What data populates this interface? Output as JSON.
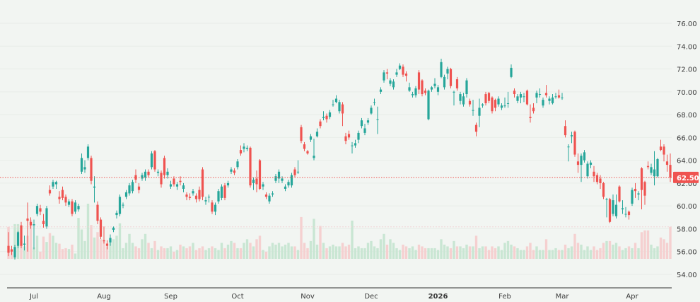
{
  "chart_data": {
    "type": "candlestick",
    "title": "",
    "colors": {
      "up": "#26a69a",
      "down": "#ef5350",
      "volume_up": "#c9e6d3",
      "volume_down": "#f5d0d0",
      "background": "#f2f5f2",
      "grid": "#e8ece8"
    },
    "ylim": [
      54,
      76
    ],
    "y_ticks": [
      "54.00",
      "56.00",
      "58.00",
      "60.00",
      "62.00",
      "64.00",
      "66.00",
      "68.00",
      "70.00",
      "72.00",
      "74.00",
      "76.00"
    ],
    "grid": true,
    "current_price": {
      "value": 62.5,
      "label": "62.50"
    },
    "x_labels": [
      {
        "label": "Jul",
        "index": 8
      },
      {
        "label": "Aug",
        "index": 30
      },
      {
        "label": "Sep",
        "index": 51
      },
      {
        "label": "Oct",
        "index": 72
      },
      {
        "label": "Nov",
        "index": 94
      },
      {
        "label": "Dec",
        "index": 114
      },
      {
        "label": "2026",
        "index": 135,
        "bold": true
      },
      {
        "label": "Feb",
        "index": 156
      },
      {
        "label": "Mar",
        "index": 174
      },
      {
        "label": "Apr",
        "index": 196
      }
    ],
    "candle_fields": [
      "open",
      "high",
      "low",
      "close",
      "volume"
    ],
    "candles": [
      [
        56.5,
        57.7,
        55.6,
        55.9,
        36
      ],
      [
        56.2,
        56.5,
        55.7,
        56.0,
        10
      ],
      [
        55.5,
        56.6,
        55.3,
        56.4,
        39
      ],
      [
        56.5,
        57.8,
        56.3,
        57.7,
        39
      ],
      [
        58.3,
        58.6,
        56.3,
        56.5,
        20
      ],
      [
        56.6,
        57.4,
        56.1,
        56.7,
        14
      ],
      [
        58.9,
        60.3,
        56.0,
        58.7,
        26
      ],
      [
        58.6,
        59.0,
        58.0,
        58.3,
        44
      ],
      [
        58.3,
        58.8,
        56.2,
        58.4,
        13
      ],
      [
        59.3,
        60.2,
        59.1,
        60.0,
        26
      ],
      [
        59.8,
        60.1,
        59.2,
        59.5,
        8
      ],
      [
        58.7,
        59.3,
        58.1,
        58.4,
        25
      ],
      [
        58.2,
        60.0,
        58.0,
        59.8,
        19
      ],
      [
        61.4,
        61.8,
        60.9,
        61.1,
        29
      ],
      [
        61.7,
        62.3,
        61.5,
        62.1,
        26
      ],
      [
        61.9,
        62.2,
        61.5,
        62.1,
        18
      ],
      [
        60.8,
        61.3,
        60.2,
        60.6,
        17
      ],
      [
        61.4,
        61.7,
        60.5,
        60.7,
        11
      ],
      [
        60.8,
        61.0,
        60.0,
        60.3,
        12
      ],
      [
        60.1,
        60.6,
        59.9,
        60.4,
        11
      ],
      [
        60.4,
        60.6,
        59.1,
        59.3,
        16
      ],
      [
        59.5,
        60.5,
        59.3,
        60.3,
        6
      ],
      [
        59.7,
        60.2,
        59.5,
        60.0,
        46
      ],
      [
        63.0,
        64.6,
        62.8,
        64.2,
        33
      ],
      [
        63.2,
        64.0,
        62.9,
        63.4,
        20
      ],
      [
        64.2,
        65.4,
        64.0,
        65.2,
        62
      ],
      [
        64.2,
        64.4,
        61.9,
        62.2,
        38
      ],
      [
        61.6,
        62.6,
        60.3,
        61.7,
        24
      ],
      [
        60.1,
        60.4,
        58.4,
        58.7,
        30
      ],
      [
        58.8,
        59.0,
        57.1,
        57.3,
        22
      ],
      [
        57.0,
        58.2,
        56.7,
        56.9,
        20
      ],
      [
        56.7,
        57.0,
        56.2,
        56.5,
        14
      ],
      [
        56.8,
        57.5,
        56.5,
        57.2,
        18
      ],
      [
        57.9,
        58.2,
        57.7,
        58.1,
        22
      ],
      [
        59.2,
        59.6,
        58.9,
        59.4,
        26
      ],
      [
        59.3,
        61.0,
        59.1,
        60.8,
        40
      ],
      [
        60.1,
        60.3,
        59.8,
        60.1,
        12
      ],
      [
        60.8,
        61.4,
        60.6,
        61.2,
        18
      ],
      [
        61.1,
        62.0,
        60.9,
        61.8,
        28
      ],
      [
        61.3,
        62.3,
        61.1,
        62.1,
        18
      ],
      [
        62.7,
        63.2,
        62.0,
        62.3,
        14
      ],
      [
        61.7,
        62.0,
        61.1,
        61.4,
        12
      ],
      [
        62.4,
        62.9,
        62.2,
        62.7,
        22
      ],
      [
        62.5,
        63.2,
        62.2,
        63.0,
        28
      ],
      [
        63.0,
        63.2,
        62.5,
        62.7,
        18
      ],
      [
        63.4,
        64.8,
        63.2,
        64.6,
        12
      ],
      [
        64.8,
        64.9,
        63.0,
        63.2,
        20
      ],
      [
        62.9,
        63.2,
        62.6,
        63.0,
        10
      ],
      [
        62.9,
        63.1,
        61.6,
        61.9,
        14
      ],
      [
        64.2,
        64.4,
        62.4,
        62.7,
        12
      ],
      [
        62.7,
        63.3,
        62.4,
        63.0,
        12
      ],
      [
        61.7,
        62.2,
        61.5,
        61.9,
        14
      ],
      [
        62.4,
        62.6,
        61.7,
        61.9,
        8
      ],
      [
        61.7,
        62.1,
        61.4,
        61.9,
        10
      ],
      [
        62.2,
        62.6,
        61.8,
        62.1,
        16
      ],
      [
        61.5,
        62.0,
        61.2,
        61.8,
        14
      ],
      [
        61.0,
        61.2,
        60.5,
        60.8,
        12
      ],
      [
        60.8,
        61.1,
        60.5,
        60.7,
        14
      ],
      [
        61.1,
        61.5,
        60.9,
        61.3,
        18
      ],
      [
        60.9,
        61.1,
        60.3,
        60.6,
        10
      ],
      [
        61.4,
        61.7,
        60.4,
        60.6,
        12
      ],
      [
        63.2,
        63.4,
        60.5,
        60.8,
        14
      ],
      [
        60.4,
        60.8,
        60.1,
        60.5,
        10
      ],
      [
        60.8,
        61.0,
        60.3,
        60.8,
        12
      ],
      [
        60.3,
        60.5,
        59.3,
        59.5,
        14
      ],
      [
        59.5,
        60.3,
        59.2,
        60.1,
        12
      ],
      [
        60.4,
        61.5,
        60.2,
        61.3,
        10
      ],
      [
        60.7,
        61.9,
        60.5,
        61.7,
        18
      ],
      [
        61.8,
        62.0,
        60.5,
        60.7,
        12
      ],
      [
        61.8,
        62.2,
        61.6,
        62.0,
        16
      ],
      [
        63.0,
        63.4,
        62.8,
        63.2,
        20
      ],
      [
        63.1,
        63.3,
        62.7,
        62.9,
        18
      ],
      [
        63.4,
        64.1,
        63.2,
        63.9,
        12
      ],
      [
        64.9,
        65.3,
        64.4,
        64.6,
        12
      ],
      [
        65.0,
        65.5,
        64.7,
        65.2,
        18
      ],
      [
        65.0,
        65.3,
        64.8,
        65.1,
        22
      ],
      [
        65.1,
        65.2,
        61.6,
        61.8,
        18
      ],
      [
        62.0,
        62.5,
        61.4,
        62.3,
        14
      ],
      [
        62.4,
        63.1,
        61.2,
        61.9,
        22
      ],
      [
        64.0,
        64.1,
        61.4,
        61.5,
        26
      ],
      [
        61.7,
        62.1,
        61.4,
        61.9,
        10
      ],
      [
        61.0,
        61.2,
        60.6,
        60.8,
        8
      ],
      [
        60.4,
        61.1,
        60.2,
        60.9,
        14
      ],
      [
        61.0,
        61.3,
        60.8,
        61.1,
        18
      ],
      [
        62.2,
        62.8,
        62.0,
        62.6,
        16
      ],
      [
        62.4,
        63.2,
        62.0,
        63.0,
        18
      ],
      [
        62.2,
        62.6,
        62.0,
        62.4,
        14
      ],
      [
        61.5,
        61.9,
        61.3,
        61.7,
        16
      ],
      [
        61.8,
        62.3,
        61.6,
        62.1,
        18
      ],
      [
        61.8,
        62.9,
        61.6,
        62.7,
        14
      ],
      [
        63.2,
        63.4,
        62.5,
        62.7,
        14
      ],
      [
        63.0,
        64.0,
        62.8,
        63.0,
        10
      ],
      [
        66.9,
        67.1,
        65.5,
        65.7,
        47
      ],
      [
        65.4,
        65.6,
        64.8,
        65.0,
        18
      ],
      [
        64.8,
        64.9,
        64.5,
        64.6,
        12
      ],
      [
        65.8,
        66.3,
        65.6,
        66.1,
        20
      ],
      [
        64.2,
        65.9,
        64.0,
        64.4,
        45
      ],
      [
        66.1,
        66.8,
        66.0,
        66.5,
        16
      ],
      [
        67.4,
        67.6,
        66.8,
        67.0,
        37
      ],
      [
        67.7,
        68.3,
        67.5,
        67.8,
        18
      ],
      [
        67.9,
        68.1,
        67.3,
        67.6,
        12
      ],
      [
        67.8,
        68.4,
        67.6,
        68.2,
        14
      ],
      [
        68.9,
        69.3,
        68.7,
        68.9,
        16
      ],
      [
        69.1,
        69.7,
        69.0,
        69.4,
        14
      ],
      [
        68.3,
        69.3,
        68.1,
        69.1,
        14
      ],
      [
        68.9,
        69.1,
        67.0,
        68.1,
        18
      ],
      [
        66.1,
        66.4,
        65.4,
        65.7,
        14
      ],
      [
        66.3,
        66.6,
        65.8,
        66.0,
        16
      ],
      [
        65.3,
        65.6,
        64.6,
        65.3,
        43
      ],
      [
        65.3,
        65.8,
        65.1,
        65.5,
        12
      ],
      [
        65.8,
        66.6,
        65.5,
        66.4,
        14
      ],
      [
        67.0,
        67.7,
        66.8,
        67.5,
        12
      ],
      [
        66.4,
        67.2,
        66.2,
        66.8,
        12
      ],
      [
        67.3,
        67.7,
        67.1,
        67.5,
        18
      ],
      [
        68.1,
        68.8,
        68.0,
        68.6,
        20
      ],
      [
        69.1,
        69.4,
        68.8,
        69.1,
        14
      ],
      [
        67.6,
        68.7,
        66.3,
        67.6,
        12
      ],
      [
        70.0,
        70.4,
        69.8,
        70.2,
        22
      ],
      [
        71.0,
        71.9,
        70.8,
        71.7,
        28
      ],
      [
        71.7,
        72.0,
        71.1,
        71.6,
        16
      ],
      [
        70.7,
        71.2,
        70.5,
        71.0,
        22
      ],
      [
        70.4,
        71.1,
        70.2,
        70.9,
        18
      ],
      [
        71.5,
        72.0,
        71.3,
        71.7,
        12
      ],
      [
        72.0,
        72.5,
        71.9,
        72.3,
        10
      ],
      [
        72.2,
        72.4,
        71.3,
        71.5,
        16
      ],
      [
        71.6,
        71.8,
        70.9,
        71.4,
        14
      ],
      [
        70.1,
        70.8,
        70.0,
        70.4,
        12
      ],
      [
        69.7,
        70.0,
        69.5,
        69.8,
        14
      ],
      [
        69.7,
        70.5,
        69.5,
        70.3,
        10
      ],
      [
        71.7,
        71.9,
        69.8,
        70.2,
        16
      ],
      [
        71.0,
        71.1,
        69.6,
        69.8,
        14
      ],
      [
        70.1,
        70.3,
        69.7,
        69.9,
        12
      ],
      [
        67.6,
        70.2,
        67.5,
        70.1,
        12
      ],
      [
        70.2,
        70.5,
        70.0,
        70.4,
        12
      ],
      [
        70.5,
        71.2,
        70.3,
        70.7,
        12
      ],
      [
        70.0,
        70.6,
        69.7,
        70.4,
        10
      ],
      [
        71.3,
        72.9,
        71.2,
        72.6,
        22
      ],
      [
        70.4,
        71.5,
        70.2,
        71.3,
        16
      ],
      [
        71.6,
        72.2,
        71.1,
        72.0,
        14
      ],
      [
        72.0,
        72.1,
        70.3,
        70.5,
        12
      ],
      [
        70.0,
        70.1,
        68.8,
        70.0,
        20
      ],
      [
        71.1,
        71.3,
        70.1,
        70.3,
        14
      ],
      [
        69.2,
        70.0,
        68.9,
        69.8,
        14
      ],
      [
        68.9,
        69.9,
        68.7,
        69.6,
        12
      ],
      [
        69.8,
        71.2,
        69.5,
        71.0,
        16
      ],
      [
        69.2,
        69.4,
        68.7,
        68.9,
        14
      ],
      [
        68.4,
        69.3,
        67.9,
        68.4,
        14
      ],
      [
        67.1,
        67.3,
        66.1,
        66.5,
        26
      ],
      [
        67.9,
        69.4,
        66.9,
        68.6,
        12
      ],
      [
        68.8,
        69.0,
        68.6,
        68.9,
        14
      ],
      [
        69.8,
        70.0,
        68.8,
        69.0,
        14
      ],
      [
        69.9,
        70.0,
        69.0,
        69.2,
        10
      ],
      [
        69.5,
        69.6,
        68.1,
        68.3,
        14
      ],
      [
        69.3,
        69.4,
        68.3,
        68.6,
        12
      ],
      [
        68.9,
        69.6,
        68.7,
        69.4,
        14
      ],
      [
        68.6,
        69.0,
        68.4,
        68.8,
        10
      ],
      [
        68.8,
        69.5,
        68.6,
        68.8,
        18
      ],
      [
        69.0,
        70.0,
        68.6,
        69.0,
        20
      ],
      [
        71.3,
        72.4,
        71.2,
        72.1,
        16
      ],
      [
        70.1,
        70.3,
        69.5,
        69.8,
        14
      ],
      [
        69.2,
        69.8,
        69.0,
        69.6,
        12
      ],
      [
        69.5,
        70.0,
        69.0,
        69.8,
        10
      ],
      [
        69.6,
        69.9,
        69.1,
        69.6,
        10
      ],
      [
        70.1,
        70.2,
        68.8,
        68.9,
        14
      ],
      [
        67.8,
        68.9,
        67.3,
        67.7,
        18
      ],
      [
        68.6,
        69.0,
        68.1,
        68.3,
        10
      ],
      [
        69.5,
        70.1,
        69.0,
        69.9,
        14
      ],
      [
        69.8,
        70.3,
        69.5,
        69.8,
        10
      ],
      [
        68.8,
        69.5,
        68.6,
        69.3,
        10
      ],
      [
        69.9,
        70.6,
        69.5,
        69.7,
        22
      ],
      [
        69.2,
        69.6,
        68.9,
        69.4,
        10
      ],
      [
        69.0,
        69.8,
        68.9,
        69.5,
        10
      ],
      [
        69.6,
        69.9,
        69.4,
        69.6,
        12
      ],
      [
        69.7,
        70.2,
        69.4,
        69.5,
        10
      ],
      [
        69.5,
        69.9,
        69.3,
        69.5,
        10
      ],
      [
        67.0,
        67.5,
        66.0,
        66.2,
        16
      ],
      [
        65.2,
        65.4,
        63.9,
        65.2,
        12
      ],
      [
        66.1,
        66.5,
        65.5,
        66.2,
        14
      ],
      [
        66.5,
        66.6,
        64.3,
        64.5,
        28
      ],
      [
        63.9,
        64.6,
        62.9,
        63.6,
        18
      ],
      [
        63.6,
        64.6,
        62.1,
        64.4,
        16
      ],
      [
        64.0,
        64.9,
        63.8,
        64.7,
        10
      ],
      [
        62.6,
        63.9,
        62.4,
        63.7,
        14
      ],
      [
        63.6,
        64.0,
        63.3,
        63.8,
        10
      ],
      [
        63.0,
        63.5,
        62.1,
        62.6,
        14
      ],
      [
        62.7,
        62.9,
        61.9,
        62.1,
        10
      ],
      [
        62.4,
        62.7,
        61.5,
        62.0,
        12
      ],
      [
        62.0,
        62.1,
        60.6,
        60.8,
        18
      ],
      [
        60.6,
        60.7,
        59.0,
        60.6,
        20
      ],
      [
        60.6,
        60.7,
        58.5,
        58.6,
        20
      ],
      [
        59.3,
        61.0,
        59.1,
        60.5,
        16
      ],
      [
        59.1,
        61.0,
        58.9,
        60.1,
        18
      ],
      [
        61.7,
        61.8,
        60.3,
        60.4,
        14
      ],
      [
        59.7,
        60.5,
        59.3,
        59.8,
        10
      ],
      [
        59.3,
        59.9,
        59.0,
        59.3,
        12
      ],
      [
        59.5,
        59.6,
        58.8,
        59.2,
        14
      ],
      [
        60.2,
        61.6,
        60.0,
        61.4,
        12
      ],
      [
        61.5,
        62.0,
        60.7,
        61.3,
        18
      ],
      [
        61.0,
        61.3,
        60.5,
        61.1,
        12
      ],
      [
        63.3,
        63.4,
        59.7,
        61.4,
        30
      ],
      [
        62.1,
        62.2,
        60.1,
        60.9,
        32
      ],
      [
        63.5,
        63.9,
        63.2,
        63.4,
        32
      ],
      [
        62.9,
        63.7,
        62.7,
        63.4,
        16
      ],
      [
        62.6,
        64.8,
        61.8,
        63.2,
        12
      ],
      [
        62.6,
        64.2,
        62.5,
        64.1,
        14
      ],
      [
        65.2,
        65.8,
        64.8,
        64.9,
        24
      ],
      [
        65.2,
        65.4,
        63.9,
        64.5,
        22
      ],
      [
        63.9,
        64.5,
        63.0,
        63.6,
        18
      ],
      [
        63.6,
        64.6,
        62.1,
        62.5,
        36
      ]
    ]
  }
}
